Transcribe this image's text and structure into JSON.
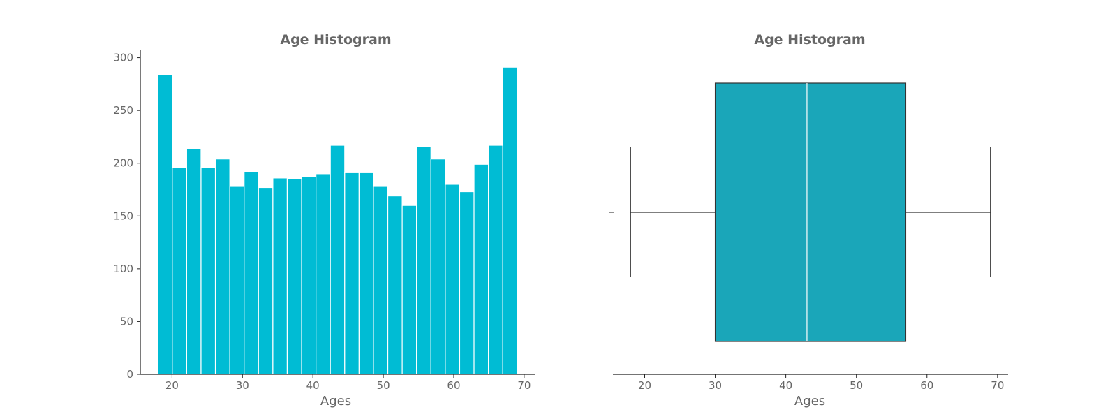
{
  "chart_data": [
    {
      "type": "bar",
      "title": "Age Histogram",
      "xlabel": "Ages",
      "ylabel": "",
      "color": "#00bcd4",
      "bin_start": 18,
      "bin_width": 2.04,
      "values": [
        284,
        196,
        214,
        196,
        204,
        178,
        192,
        177,
        186,
        185,
        187,
        190,
        217,
        191,
        191,
        178,
        169,
        160,
        216,
        204,
        180,
        173,
        199,
        217,
        291
      ],
      "xlim": [
        15.5,
        71.5
      ],
      "ylim": [
        0,
        307
      ],
      "xticks": [
        20,
        30,
        40,
        50,
        60,
        70
      ],
      "yticks": [
        0,
        50,
        100,
        150,
        200,
        250,
        300
      ],
      "grid": false
    },
    {
      "type": "box",
      "title": "Age Histogram",
      "xlabel": "Ages",
      "color": "#1aa6b9",
      "min": 18,
      "q1": 30,
      "median": 43,
      "q3": 57,
      "max": 69,
      "xlim": [
        15.5,
        71.5
      ],
      "xticks": [
        20,
        30,
        40,
        50,
        60,
        70
      ],
      "grid": false
    }
  ]
}
